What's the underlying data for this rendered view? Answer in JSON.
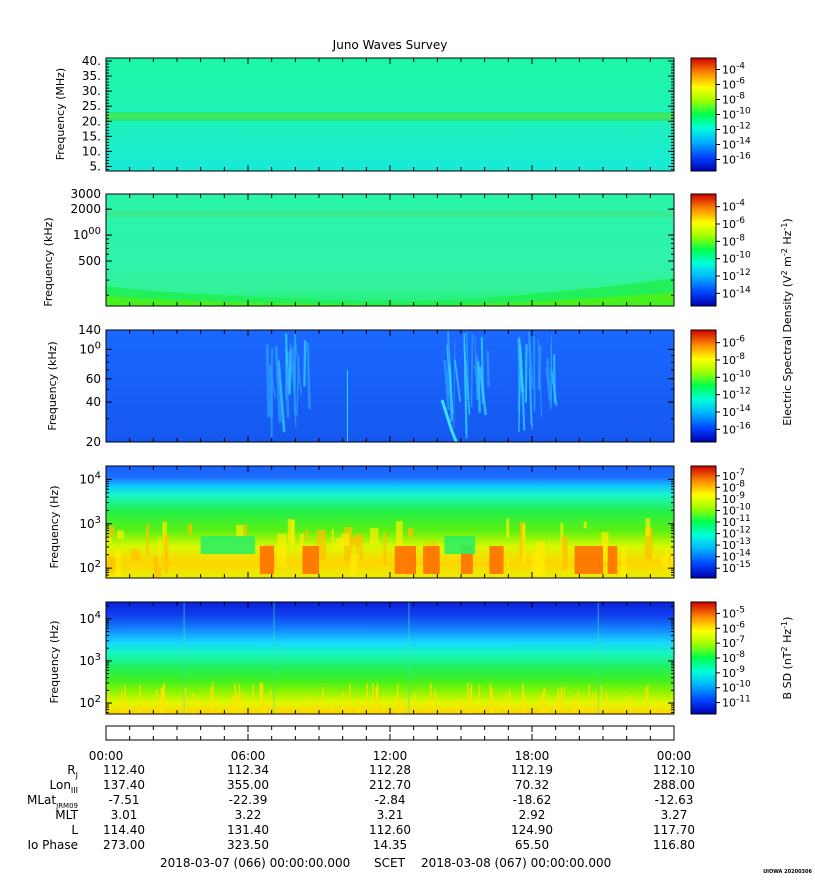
{
  "title": "Juno Waves Survey",
  "footer": {
    "start": "2018-03-07 (066) 00:00:00.000",
    "scet": "SCET",
    "end": "2018-03-08 (067) 00:00:00.000",
    "stamp": "UIOWA 20200306"
  },
  "chart_data": [
    {
      "type": "heatmap",
      "ylabel": "Frequency (MHz)",
      "yscale": "linear",
      "ylim": [
        3.5,
        41
      ],
      "yticks": [
        "40.",
        "35.",
        "30.",
        "25.",
        "20.",
        "15.",
        "10.",
        "5."
      ],
      "ytick_values": [
        40,
        35,
        30,
        25,
        20,
        15,
        10,
        5
      ],
      "colorbar": {
        "label": "",
        "ticks": [
          "10-4",
          "10-6",
          "10-8",
          "10-10",
          "10-12",
          "10-14",
          "10-16"
        ]
      },
      "features": [
        {
          "kind": "narrow-band",
          "freq": 21
        }
      ]
    },
    {
      "type": "heatmap",
      "ylabel": "Frequency (kHz)",
      "yscale": "log",
      "ylim": [
        150,
        3000
      ],
      "yticks": [
        "3000",
        "2000",
        "1000",
        "500"
      ],
      "ytick_values": [
        3000,
        2000,
        1000,
        500
      ],
      "colorbar": {
        "label": "Electric Spectral Density (V2 m-2 Hz-1)",
        "ticks": [
          "10-4",
          "10-6",
          "10-8",
          "10-10",
          "10-12",
          "10-14"
        ]
      },
      "features": [
        {
          "kind": "narrow-band",
          "freq": 1700
        }
      ]
    },
    {
      "type": "heatmap",
      "ylabel": "Frequency (kHz)",
      "yscale": "log",
      "ylim": [
        20,
        140
      ],
      "yticks": [
        "140",
        "100",
        "60",
        "40",
        "20"
      ],
      "ytick_values": [
        140,
        100,
        60,
        40,
        20
      ],
      "colorbar": {
        "label": "",
        "ticks": [
          "10-6",
          "10-8",
          "10-10",
          "10-12",
          "10-14",
          "10-16"
        ]
      },
      "features": [
        {
          "kind": "bursts",
          "hours": [
            6.8,
            8.6
          ]
        },
        {
          "kind": "bursts",
          "hours": [
            14.3,
            16.2
          ]
        },
        {
          "kind": "bursts",
          "hours": [
            17.3,
            19.0
          ]
        }
      ]
    },
    {
      "type": "heatmap",
      "ylabel": "Frequency (Hz)",
      "yscale": "log",
      "ylim": [
        60,
        20000
      ],
      "yticks": [
        "104",
        "103",
        "102"
      ],
      "ytick_values": [
        10000,
        1000,
        100
      ],
      "colorbar": {
        "label": "",
        "ticks": [
          "10-7",
          "10-8",
          "10-9",
          "10-10",
          "10-11",
          "10-12",
          "10-13",
          "10-14",
          "10-15"
        ]
      }
    },
    {
      "type": "heatmap",
      "ylabel": "Frequency (Hz)",
      "yscale": "log",
      "ylim": [
        55,
        25000
      ],
      "yticks": [
        "104",
        "103",
        "102"
      ],
      "ytick_values": [
        10000,
        1000,
        100
      ],
      "colorbar": {
        "label": "B SD (nT2 Hz-1)",
        "ticks": [
          "10-5",
          "10-6",
          "10-7",
          "10-8",
          "10-9",
          "10-10",
          "10-11"
        ]
      }
    }
  ],
  "time_axis": {
    "range_hours": [
      0,
      24
    ],
    "labels": [
      "00:00",
      "06:00",
      "12:00",
      "18:00",
      "00:00"
    ]
  },
  "ephemeris": [
    {
      "label": "RJ",
      "values": [
        "112.40",
        "112.34",
        "112.28",
        "112.19",
        "112.10"
      ]
    },
    {
      "label": "LonIII",
      "values": [
        "137.40",
        "355.00",
        "212.70",
        "70.32",
        "288.00"
      ]
    },
    {
      "label": "MLatJRM09",
      "values": [
        "-7.51",
        "-22.39",
        "-2.84",
        "-18.62",
        "-12.63"
      ]
    },
    {
      "label": "MLT",
      "values": [
        "3.01",
        "3.22",
        "3.21",
        "2.92",
        "3.27"
      ]
    },
    {
      "label": "L",
      "values": [
        "114.40",
        "131.40",
        "112.60",
        "124.90",
        "117.70"
      ]
    },
    {
      "label": "Io Phase",
      "values": [
        "273.00",
        "323.50",
        "14.35",
        "65.50",
        "116.80"
      ]
    }
  ],
  "colors": {
    "colormap": [
      "#0000b0",
      "#0040ff",
      "#00b4ff",
      "#00ffd8",
      "#00ff50",
      "#9cff00",
      "#ffff00",
      "#ff9000",
      "#ff2800",
      "#d00000"
    ]
  }
}
